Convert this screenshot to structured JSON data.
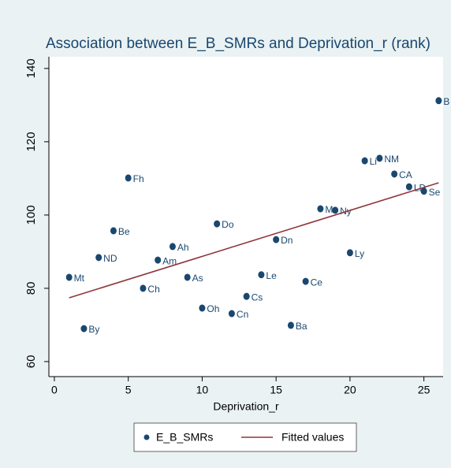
{
  "chart_data": {
    "type": "scatter",
    "title": "Association between E_B_SMRs and Deprivation_r (rank)",
    "xlabel": "Deprivation_r",
    "xlim": [
      -0.37,
      26.3
    ],
    "ylim": [
      55.9,
      143.2
    ],
    "xticks": [
      0,
      5,
      10,
      15,
      20,
      25
    ],
    "yticks": [
      60,
      80,
      100,
      120,
      140
    ],
    "legend": "bottom",
    "series": [
      {
        "name": "E_B_SMRs",
        "type": "scatter",
        "color": "#1a476f",
        "x": [
          1,
          2,
          3,
          4,
          5,
          6,
          7,
          8,
          9,
          10,
          11,
          12,
          13,
          14,
          15,
          16,
          17,
          18,
          19,
          20,
          21,
          22,
          23,
          24,
          25,
          26
        ],
        "values": [
          83.0,
          69.0,
          88.4,
          95.7,
          110.1,
          80.0,
          87.7,
          91.4,
          83.0,
          74.6,
          97.6,
          73.1,
          77.8,
          83.7,
          93.3,
          69.9,
          81.9,
          101.7,
          101.3,
          89.7,
          114.8,
          115.5,
          111.2,
          107.7,
          106.5,
          131.2
        ],
        "labels": [
          "Mt",
          "By",
          "ND",
          "Be",
          "Fh",
          "Ch",
          "Am",
          "Ah",
          "As",
          "Oh",
          "Do",
          "Cn",
          "Cs",
          "Le",
          "Dn",
          "Ba",
          "Ce",
          "M",
          "Ny",
          "Ly",
          "Li",
          "NM",
          "CA",
          "LD",
          "Se",
          "B"
        ]
      },
      {
        "name": "Fitted values",
        "type": "line",
        "color": "#90353b",
        "x": [
          1,
          26
        ],
        "values": [
          77.4,
          108.8
        ]
      }
    ]
  }
}
